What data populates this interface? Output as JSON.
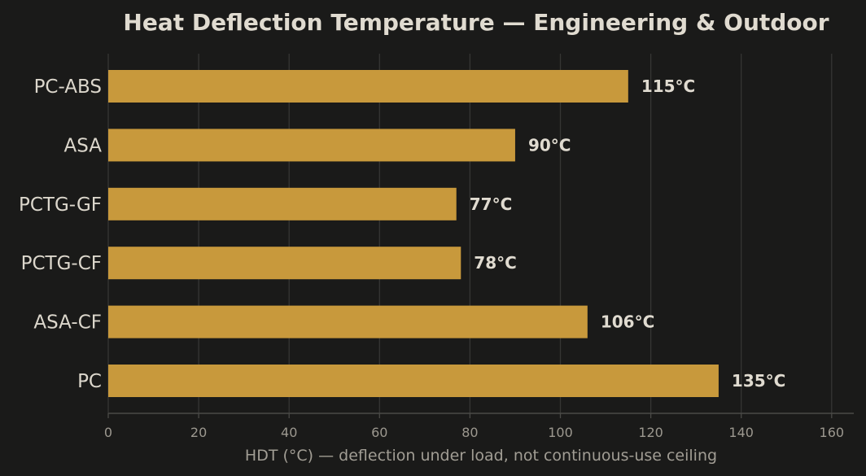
{
  "chart_data": {
    "type": "bar",
    "orientation": "horizontal",
    "title": "Heat Deflection Temperature — Engineering & Outdoor",
    "xlabel": "HDT (°C) — deflection under load, not continuous-use ceiling",
    "ylabel": "",
    "categories": [
      "PC-ABS",
      "ASA",
      "PCTG-GF",
      "PCTG-CF",
      "ASA-CF",
      "PC"
    ],
    "values": [
      115,
      90,
      77,
      78,
      106,
      135
    ],
    "value_labels": [
      "115°C",
      "90°C",
      "77°C",
      "78°C",
      "106°C",
      "135°C"
    ],
    "xlim": [
      0,
      165
    ],
    "xticks": [
      0,
      20,
      40,
      60,
      80,
      100,
      120,
      140,
      160
    ],
    "xtick_labels": [
      "0",
      "20",
      "40",
      "60",
      "80",
      "100",
      "120",
      "140",
      "160"
    ],
    "grid": "vertical",
    "legend": "none"
  },
  "colors": {
    "background": "#1a1a19",
    "bar": "#c8993c",
    "title": "#e0dbd0",
    "category_text": "#dcd7cc",
    "value_text": "#e0dbd0",
    "tick_text": "#9c988f",
    "axis_label_text": "#a19d94",
    "grid": "#363634",
    "axis_line": "#4a4a47"
  }
}
